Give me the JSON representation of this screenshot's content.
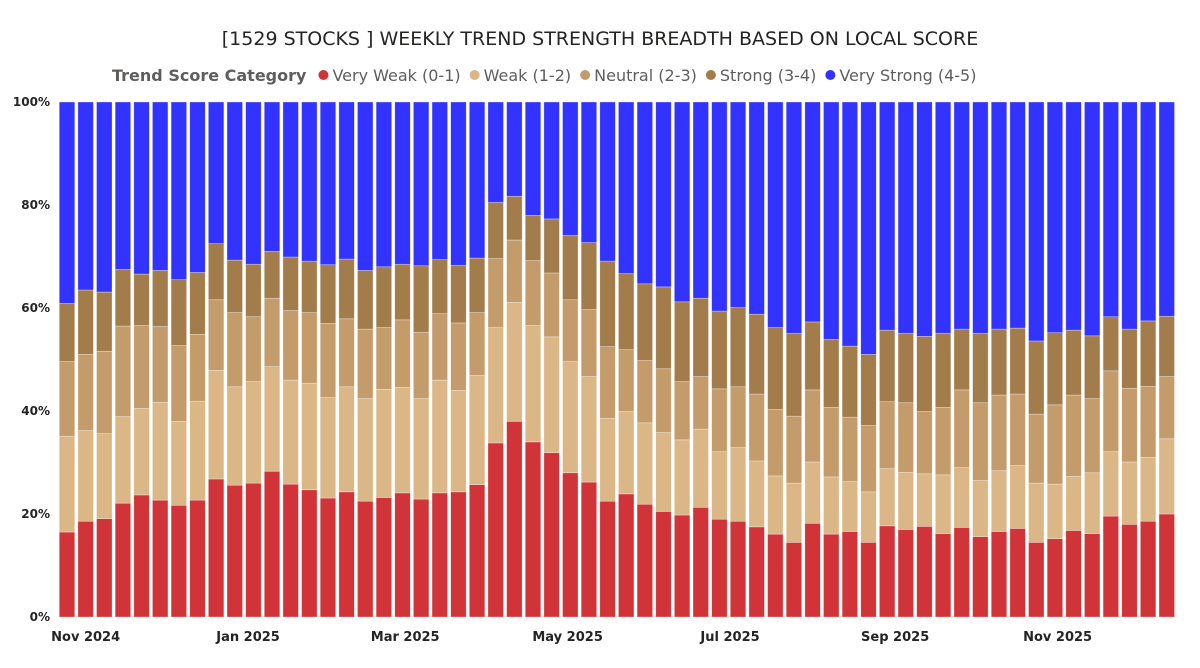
{
  "chart_data": {
    "type": "bar",
    "stacked": "100%",
    "title": "[1529 STOCKS ] WEEKLY TREND STRENGTH BREADTH BASED ON LOCAL SCORE",
    "legend": {
      "title": "Trend Score Category",
      "placement": "top"
    },
    "xlabel": "",
    "ylabel": "",
    "ylim": [
      0,
      100
    ],
    "yticks": [
      "0%",
      "20%",
      "40%",
      "60%",
      "80%",
      "100%"
    ],
    "xticks": [
      {
        "label": "Nov 2024",
        "date": "2024-11-01"
      },
      {
        "label": "Jan 2025",
        "date": "2025-01-01"
      },
      {
        "label": "Mar 2025",
        "date": "2025-03-01"
      },
      {
        "label": "May 2025",
        "date": "2025-05-01"
      },
      {
        "label": "Jul 2025",
        "date": "2025-07-01"
      },
      {
        "label": "Sep 2025",
        "date": "2025-09-01"
      },
      {
        "label": "Nov 2025",
        "date": "2025-11-01"
      }
    ],
    "grid": false,
    "x": [
      "2024-10-28",
      "2024-11-04",
      "2024-11-11",
      "2024-11-18",
      "2024-11-25",
      "2024-12-02",
      "2024-12-09",
      "2024-12-16",
      "2024-12-23",
      "2024-12-30",
      "2025-01-06",
      "2025-01-13",
      "2025-01-20",
      "2025-01-27",
      "2025-02-03",
      "2025-02-10",
      "2025-02-17",
      "2025-02-24",
      "2025-03-03",
      "2025-03-10",
      "2025-03-17",
      "2025-03-24",
      "2025-03-31",
      "2025-04-07",
      "2025-04-14",
      "2025-04-21",
      "2025-04-28",
      "2025-05-05",
      "2025-05-12",
      "2025-05-19",
      "2025-05-26",
      "2025-06-02",
      "2025-06-09",
      "2025-06-16",
      "2025-06-23",
      "2025-06-30",
      "2025-07-07",
      "2025-07-14",
      "2025-07-21",
      "2025-07-28",
      "2025-08-04",
      "2025-08-11",
      "2025-08-18",
      "2025-08-25",
      "2025-09-01",
      "2025-09-08",
      "2025-09-15",
      "2025-09-22",
      "2025-09-29",
      "2025-10-06",
      "2025-10-13",
      "2025-10-20",
      "2025-10-27",
      "2025-11-03",
      "2025-11-10",
      "2025-11-17",
      "2025-11-24",
      "2025-12-01",
      "2025-12-08",
      "2025-12-15"
    ],
    "series": [
      {
        "name": "Very Weak (0-1)",
        "color": "#D13438",
        "values": [
          16.5,
          18.6,
          19.1,
          22.1,
          23.7,
          22.7,
          21.7,
          22.7,
          26.8,
          25.6,
          26.0,
          28.3,
          25.8,
          24.7,
          23.1,
          24.3,
          22.5,
          23.2,
          24.1,
          22.9,
          24.1,
          24.3,
          25.7,
          33.8,
          38.0,
          34.0,
          31.9,
          28.0,
          26.2,
          22.5,
          23.9,
          21.9,
          20.5,
          19.8,
          21.3,
          19.0,
          18.6,
          17.5,
          16.1,
          14.5,
          18.2,
          16.1,
          16.6,
          14.5,
          17.7,
          17.0,
          17.6,
          16.2,
          17.4,
          15.6,
          16.6,
          17.2,
          14.5,
          15.2,
          16.8,
          16.2,
          19.6,
          18.0,
          18.6,
          20.0
        ]
      },
      {
        "name": "Weak (1-2)",
        "color": "#DBB686",
        "values": [
          18.6,
          17.6,
          16.5,
          16.8,
          16.8,
          19.0,
          16.3,
          19.2,
          21.1,
          19.1,
          19.7,
          20.3,
          20.2,
          20.7,
          19.5,
          20.4,
          19.9,
          21.0,
          20.5,
          19.5,
          21.9,
          19.7,
          21.2,
          22.4,
          23.1,
          22.6,
          22.5,
          21.6,
          20.5,
          16.1,
          16.0,
          15.8,
          15.3,
          14.6,
          15.2,
          13.1,
          14.3,
          12.8,
          11.3,
          11.5,
          11.9,
          11.1,
          9.7,
          9.8,
          11.1,
          11.1,
          10.2,
          11.4,
          11.6,
          10.9,
          11.8,
          12.2,
          11.5,
          10.6,
          10.5,
          11.8,
          12.5,
          12.1,
          12.4,
          14.6
        ]
      },
      {
        "name": "Neutral (2-3)",
        "color": "#C49C6B",
        "values": [
          14.5,
          14.8,
          16.0,
          17.6,
          16.1,
          14.7,
          14.7,
          13.0,
          13.7,
          14.4,
          12.6,
          13.3,
          13.5,
          13.7,
          14.4,
          13.2,
          13.5,
          12.0,
          13.1,
          12.9,
          12.9,
          13.1,
          12.2,
          13.4,
          12.1,
          12.6,
          12.4,
          12.0,
          13.0,
          13.9,
          12.0,
          12.1,
          12.4,
          11.3,
          10.2,
          12.2,
          11.8,
          13.0,
          12.9,
          13.0,
          14.0,
          13.5,
          12.5,
          12.9,
          13.0,
          13.5,
          12.1,
          13.1,
          15.1,
          15.1,
          14.7,
          13.9,
          13.4,
          15.4,
          15.8,
          14.4,
          15.7,
          14.3,
          13.8,
          12.1
        ]
      },
      {
        "name": "Strong (3-4)",
        "color": "#A27D4B",
        "values": [
          11.3,
          12.5,
          11.5,
          11.0,
          10.0,
          10.9,
          12.8,
          12.0,
          10.9,
          10.2,
          10.2,
          9.1,
          10.4,
          10.0,
          11.4,
          11.6,
          11.4,
          11.8,
          10.8,
          12.9,
          10.5,
          11.2,
          10.6,
          10.9,
          8.5,
          8.8,
          10.5,
          12.5,
          13.0,
          16.6,
          14.8,
          14.9,
          15.9,
          15.5,
          15.2,
          15.1,
          15.4,
          15.5,
          15.9,
          16.1,
          13.2,
          13.2,
          13.8,
          13.8,
          13.9,
          13.5,
          14.6,
          14.4,
          11.8,
          13.5,
          12.8,
          12.8,
          14.2,
          14.0,
          12.6,
          12.2,
          10.5,
          11.5,
          12.7,
          11.7
        ]
      },
      {
        "name": "Very Strong (4-5)",
        "color": "#3333FF",
        "values": [
          39.1,
          36.5,
          36.9,
          32.5,
          33.4,
          32.7,
          34.5,
          33.1,
          27.5,
          30.7,
          31.5,
          29.0,
          30.1,
          30.9,
          31.6,
          30.5,
          32.7,
          32.0,
          31.5,
          31.8,
          30.6,
          31.7,
          30.3,
          19.5,
          18.3,
          22.0,
          22.7,
          25.9,
          27.3,
          30.9,
          33.3,
          35.3,
          35.9,
          38.8,
          38.1,
          40.6,
          39.9,
          41.2,
          43.8,
          44.9,
          42.7,
          46.1,
          47.4,
          49.0,
          44.3,
          44.9,
          45.5,
          44.9,
          44.1,
          44.9,
          44.1,
          43.9,
          46.4,
          44.8,
          44.3,
          45.4,
          41.7,
          44.1,
          42.5,
          41.6
        ]
      }
    ]
  }
}
